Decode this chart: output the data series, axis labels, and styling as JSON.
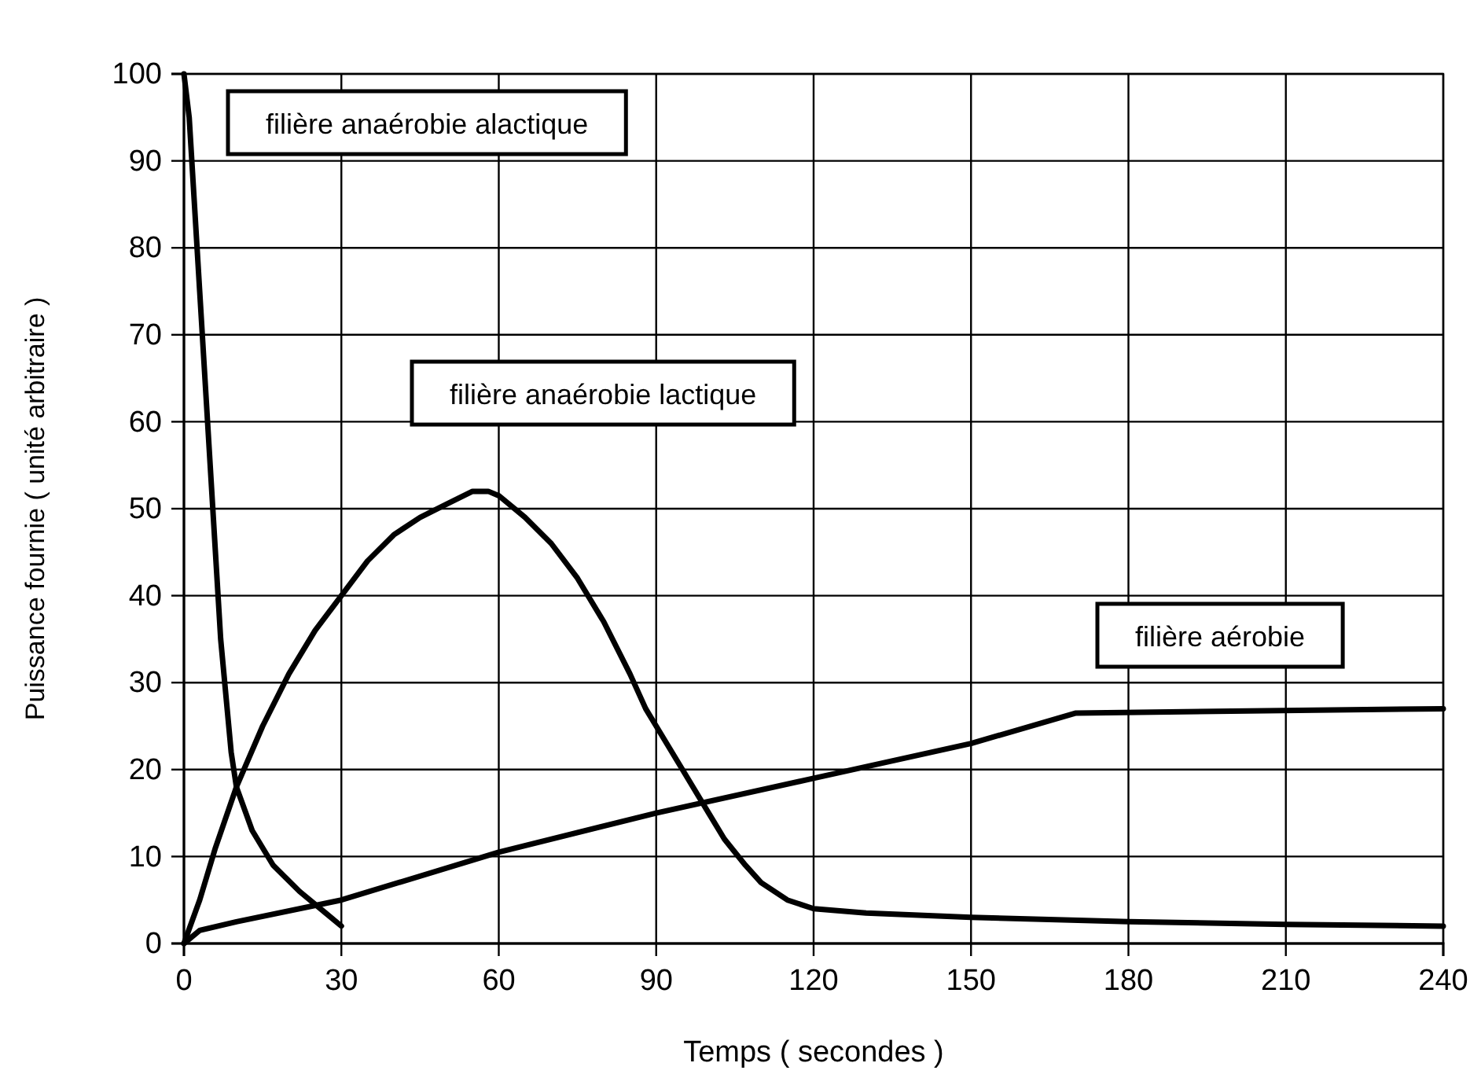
{
  "chart_data": {
    "type": "line",
    "xlabel": "Temps ( secondes )",
    "ylabel": "Puissance fournie ( unité arbitraire )",
    "xlim": [
      0,
      240
    ],
    "xticks": [
      0,
      30,
      60,
      90,
      120,
      150,
      180,
      210,
      240
    ],
    "ylim": [
      0,
      100
    ],
    "yticks": [
      0,
      10,
      20,
      30,
      40,
      50,
      60,
      70,
      80,
      90,
      100
    ],
    "grid": true,
    "marker": "none",
    "line_style": "solid",
    "series": [
      {
        "name": "filière anaérobie alactique",
        "color": "#000000",
        "x": [
          0,
          1,
          3,
          5,
          7,
          9,
          10,
          13,
          17,
          22,
          27,
          30
        ],
        "values": [
          100,
          95,
          75,
          55,
          35,
          22,
          18,
          13,
          9,
          6,
          3.5,
          2
        ]
      },
      {
        "name": "filière anaérobie lactique",
        "color": "#000000",
        "x": [
          0,
          3,
          6,
          10,
          15,
          20,
          25,
          30,
          35,
          40,
          45,
          50,
          55,
          58,
          60,
          65,
          70,
          75,
          80,
          85,
          88,
          90,
          95,
          100,
          103,
          107,
          110,
          115,
          120,
          130,
          150,
          180,
          210,
          240
        ],
        "values": [
          0,
          5,
          11,
          18,
          25,
          31,
          36,
          40,
          44,
          47,
          49,
          50.5,
          52,
          52,
          51.5,
          49,
          46,
          42,
          37,
          31,
          27,
          25,
          20,
          15,
          12,
          9,
          7,
          5,
          4,
          3.5,
          3,
          2.5,
          2.2,
          2
        ]
      },
      {
        "name": "filière aérobie",
        "color": "#000000",
        "x": [
          0,
          3,
          10,
          30,
          60,
          90,
          120,
          150,
          170,
          240
        ],
        "values": [
          0,
          1.5,
          2.5,
          5,
          10.5,
          15,
          19,
          23,
          26.5,
          27
        ]
      }
    ]
  }
}
